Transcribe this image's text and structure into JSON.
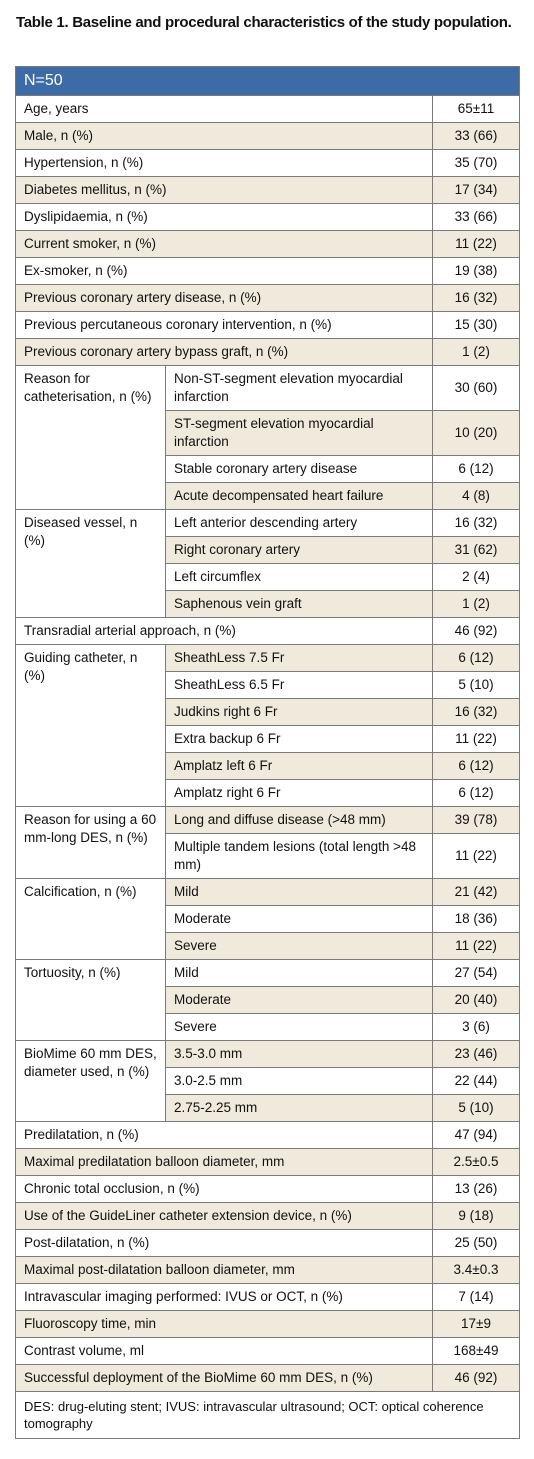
{
  "title": "Table 1. Baseline and procedural characteristics of the study population.",
  "table": {
    "header": "N=50",
    "rows": [
      {
        "label": "Age, years",
        "value": "65±11"
      },
      {
        "label": "Male, n (%)",
        "value": "33 (66)"
      },
      {
        "label": "Hypertension, n (%)",
        "value": "35 (70)"
      },
      {
        "label": "Diabetes mellitus, n (%)",
        "value": "17 (34)"
      },
      {
        "label": "Dyslipidaemia, n (%)",
        "value": "33 (66)"
      },
      {
        "label": "Current smoker, n (%)",
        "value": "11 (22)"
      },
      {
        "label": "Ex-smoker, n (%)",
        "value": "19 (38)"
      },
      {
        "label": "Previous coronary artery disease, n (%)",
        "value": "16 (32)"
      },
      {
        "label": "Previous percutaneous coronary intervention, n (%)",
        "value": "15 (30)"
      },
      {
        "label": "Previous coronary artery bypass graft, n (%)",
        "value": "1 (2)"
      },
      {
        "label": "Reason for catheterisation, n (%)",
        "items": [
          {
            "label": "Non-ST-segment elevation myocardial infarction",
            "value": "30 (60)"
          },
          {
            "label": "ST-segment elevation myocardial infarction",
            "value": "10 (20)"
          },
          {
            "label": "Stable coronary artery disease",
            "value": "6 (12)"
          },
          {
            "label": "Acute decompensated heart failure",
            "value": "4 (8)"
          }
        ]
      },
      {
        "label": "Diseased vessel, n (%)",
        "items": [
          {
            "label": "Left anterior descending artery",
            "value": "16 (32)"
          },
          {
            "label": "Right coronary artery",
            "value": "31 (62)"
          },
          {
            "label": "Left circumflex",
            "value": "2 (4)"
          },
          {
            "label": "Saphenous vein graft",
            "value": "1 (2)"
          }
        ]
      },
      {
        "label": "Transradial arterial approach, n (%)",
        "value": "46 (92)"
      },
      {
        "label": "Guiding catheter, n (%)",
        "items": [
          {
            "label": "SheathLess 7.5 Fr",
            "value": "6 (12)"
          },
          {
            "label": "SheathLess 6.5 Fr",
            "value": "5 (10)"
          },
          {
            "label": "Judkins right 6 Fr",
            "value": "16 (32)"
          },
          {
            "label": "Extra backup 6 Fr",
            "value": "11 (22)"
          },
          {
            "label": "Amplatz left 6 Fr",
            "value": "6 (12)"
          },
          {
            "label": "Amplatz right 6 Fr",
            "value": "6 (12)"
          }
        ]
      },
      {
        "label": "Reason for using a 60 mm-long DES, n (%)",
        "items": [
          {
            "label": "Long and diffuse disease (>48 mm)",
            "value": "39 (78)"
          },
          {
            "label": "Multiple tandem lesions (total length >48 mm)",
            "value": "11 (22)"
          }
        ]
      },
      {
        "label": "Calcification, n (%)",
        "items": [
          {
            "label": "Mild",
            "value": "21 (42)"
          },
          {
            "label": "Moderate",
            "value": "18 (36)"
          },
          {
            "label": "Severe",
            "value": "11 (22)"
          }
        ]
      },
      {
        "label": "Tortuosity, n (%)",
        "items": [
          {
            "label": "Mild",
            "value": "27 (54)"
          },
          {
            "label": "Moderate",
            "value": "20 (40)"
          },
          {
            "label": "Severe",
            "value": "3 (6)"
          }
        ]
      },
      {
        "label": "BioMime 60 mm DES, diameter used, n (%)",
        "items": [
          {
            "label": "3.5-3.0 mm",
            "value": "23 (46)"
          },
          {
            "label": "3.0-2.5 mm",
            "value": "22 (44)"
          },
          {
            "label": "2.75-2.25 mm",
            "value": "5 (10)"
          }
        ]
      },
      {
        "label": "Predilatation, n (%)",
        "value": "47 (94)"
      },
      {
        "label": "Maximal predilatation balloon diameter, mm",
        "value": "2.5±0.5"
      },
      {
        "label": "Chronic total occlusion, n (%)",
        "value": "13 (26)"
      },
      {
        "label": "Use of the GuideLiner catheter extension device, n (%)",
        "value": "9 (18)"
      },
      {
        "label": "Post-dilatation, n (%)",
        "value": "25 (50)"
      },
      {
        "label": "Maximal post-dilatation balloon diameter, mm",
        "value": "3.4±0.3"
      },
      {
        "label": "Intravascular imaging performed: IVUS or OCT, n (%)",
        "value": "7 (14)"
      },
      {
        "label": "Fluoroscopy time, min",
        "value": "17±9"
      },
      {
        "label": "Contrast volume, ml",
        "value": "168±49"
      },
      {
        "label": "Successful deployment of the BioMime 60 mm DES, n (%)",
        "value": "46 (92)"
      }
    ],
    "footnote": "DES: drug-eluting stent; IVUS: intravascular ultrasound; OCT: optical coherence tomography"
  }
}
